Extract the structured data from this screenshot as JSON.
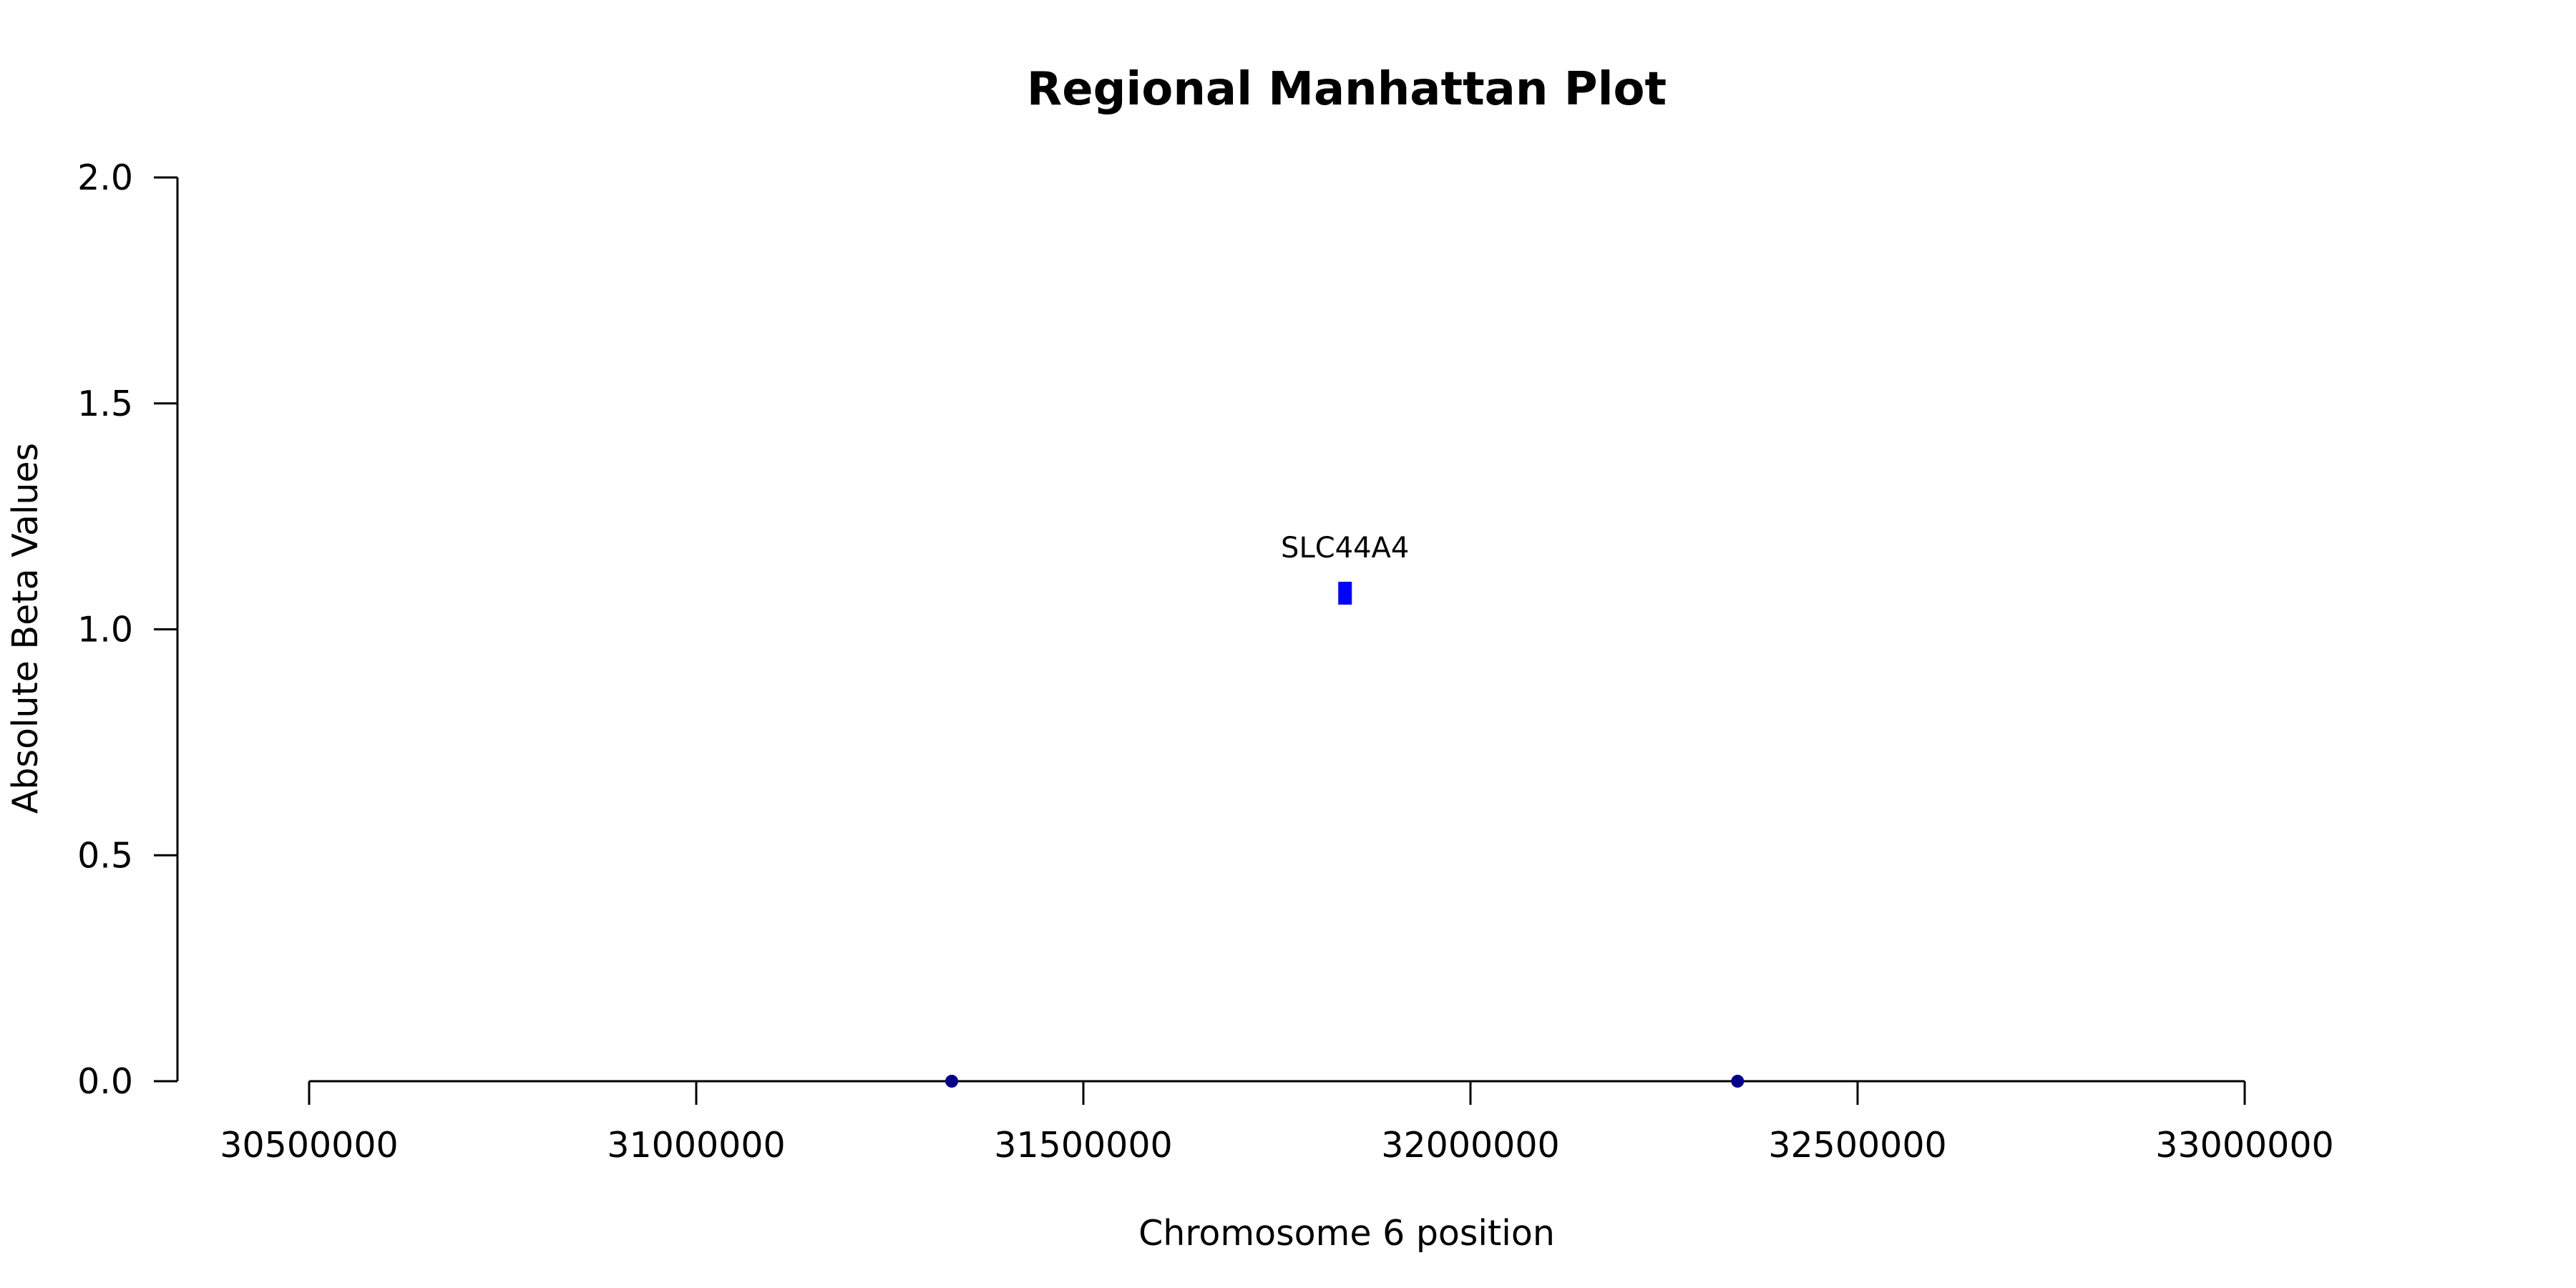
{
  "chart_data": {
    "type": "scatter",
    "title": "Regional Manhattan Plot",
    "xlabel": "Chromosome 6 position",
    "ylabel": "Absolute Beta Values",
    "xlim": [
      30500000,
      33000000
    ],
    "ylim": [
      0,
      2
    ],
    "x_ticks": [
      30500000,
      31000000,
      31500000,
      32000000,
      32500000,
      33000000
    ],
    "y_ticks": [
      0.0,
      0.5,
      1.0,
      1.5,
      2.0
    ],
    "y_tick_labels": [
      "0.0",
      "0.5",
      "1.0",
      "1.5",
      "2.0"
    ],
    "grid": false,
    "series": [
      {
        "marker": "circle",
        "color": "#00008B",
        "points": [
          {
            "x": 31330000,
            "y": 0.0
          },
          {
            "x": 32345000,
            "y": 0.0
          }
        ]
      },
      {
        "marker": "square",
        "color": "#0000FF",
        "points": [
          {
            "x": 31838000,
            "y": 1.08,
            "label": "SLC44A4"
          }
        ]
      }
    ]
  }
}
